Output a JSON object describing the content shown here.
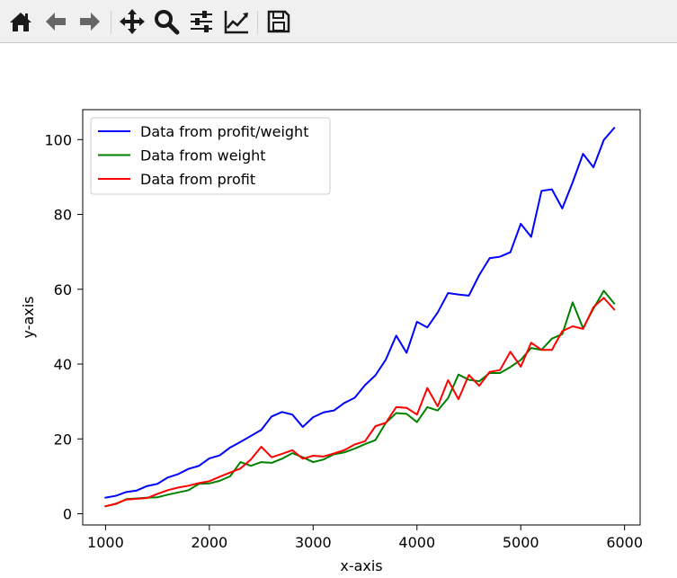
{
  "toolbar": {
    "buttons": [
      {
        "name": "home-button",
        "icon": "home-icon"
      },
      {
        "name": "back-button",
        "icon": "arrow-left-icon"
      },
      {
        "name": "forward-button",
        "icon": "arrow-right-icon"
      },
      {
        "name": "pan-button",
        "icon": "move-icon"
      },
      {
        "name": "zoom-button",
        "icon": "magnifier-icon"
      },
      {
        "name": "configure-subplots-button",
        "icon": "sliders-icon"
      },
      {
        "name": "edit-axis-button",
        "icon": "line-chart-icon"
      },
      {
        "name": "save-button",
        "icon": "floppy-disk-icon"
      }
    ]
  },
  "chart_data": {
    "type": "line",
    "xlabel": "x-axis",
    "ylabel": "y-axis",
    "xlim": [
      780,
      6150
    ],
    "ylim": [
      -3,
      108
    ],
    "xticks": [
      1000,
      2000,
      3000,
      4000,
      5000,
      6000
    ],
    "yticks": [
      0,
      20,
      40,
      60,
      80,
      100
    ],
    "grid": false,
    "legend_position": "top-left",
    "x": [
      1000,
      1100,
      1200,
      1300,
      1400,
      1500,
      1600,
      1700,
      1800,
      1900,
      2000,
      2100,
      2200,
      2300,
      2400,
      2500,
      2600,
      2700,
      2800,
      2900,
      3000,
      3100,
      3200,
      3300,
      3400,
      3500,
      3600,
      3700,
      3800,
      3900,
      4000,
      4100,
      4200,
      4300,
      4400,
      4500,
      4600,
      4700,
      4800,
      4900,
      5000,
      5100,
      5200,
      5300,
      5400,
      5500,
      5600,
      5700,
      5800,
      5900
    ],
    "series": [
      {
        "name": "Data from profit/weight",
        "color": "#0000ff",
        "values": [
          4.3,
          4.8,
          5.8,
          6.2,
          7.4,
          8.0,
          9.7,
          10.6,
          12.0,
          12.8,
          14.8,
          15.6,
          17.7,
          19.2,
          20.8,
          22.4,
          26.0,
          27.2,
          26.5,
          23.2,
          25.8,
          27.1,
          27.6,
          29.6,
          31.0,
          34.4,
          37.0,
          41.2,
          47.6,
          43.0,
          51.3,
          49.8,
          53.8,
          59.0,
          58.6,
          58.3,
          63.8,
          68.3,
          68.7,
          69.9,
          77.5,
          74.0,
          86.3,
          86.7,
          81.6,
          88.6,
          96.2,
          92.6,
          99.9,
          103.1
        ]
      },
      {
        "name": "Data from weight",
        "color": "#008000",
        "values": [
          2.0,
          2.6,
          3.9,
          4.1,
          4.3,
          4.4,
          5.1,
          5.7,
          6.3,
          8.0,
          8.1,
          8.8,
          10.0,
          13.8,
          12.8,
          13.8,
          13.6,
          14.7,
          16.2,
          15.1,
          13.8,
          14.5,
          15.9,
          16.4,
          17.4,
          18.6,
          19.7,
          24.3,
          26.9,
          26.7,
          24.5,
          28.5,
          27.6,
          30.9,
          37.2,
          35.8,
          35.4,
          37.6,
          37.6,
          39.2,
          41.1,
          44.3,
          43.8,
          46.8,
          48.0,
          56.5,
          49.6,
          54.8,
          59.6,
          56.2
        ]
      },
      {
        "name": "Data from profit",
        "color": "#ff0000",
        "values": [
          2.0,
          2.7,
          3.8,
          4.0,
          4.2,
          5.3,
          6.3,
          7.0,
          7.5,
          8.2,
          8.7,
          9.9,
          11.0,
          12.1,
          14.5,
          17.9,
          15.1,
          16.0,
          17.0,
          14.7,
          15.5,
          15.3,
          16.1,
          17.0,
          18.5,
          19.4,
          23.4,
          24.3,
          28.5,
          28.3,
          26.5,
          33.6,
          28.7,
          35.7,
          30.6,
          37.1,
          34.2,
          37.9,
          38.4,
          43.3,
          39.3,
          45.7,
          43.8,
          43.8,
          48.8,
          50.1,
          49.4,
          55.2,
          57.7,
          54.6
        ]
      }
    ]
  }
}
